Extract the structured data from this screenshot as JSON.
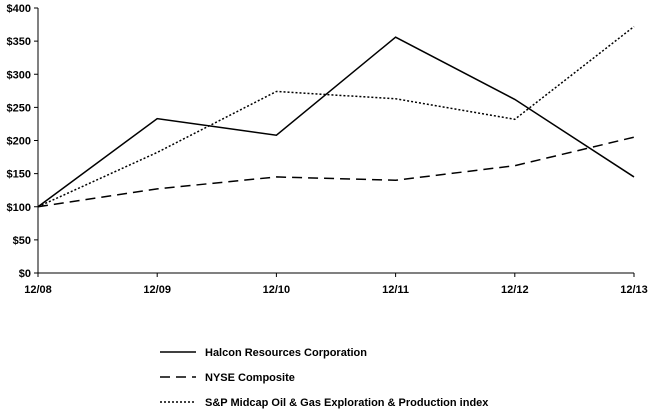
{
  "chart_data": {
    "type": "line",
    "title": "",
    "xlabel": "",
    "ylabel": "",
    "categories": [
      "12/08",
      "12/09",
      "12/10",
      "12/11",
      "12/12",
      "12/13"
    ],
    "ylim": [
      0,
      400
    ],
    "yticks": [
      0,
      50,
      100,
      150,
      200,
      250,
      300,
      350,
      400
    ],
    "ytick_labels": [
      "$0",
      "$50",
      "$100",
      "$150",
      "$200",
      "$250",
      "$300",
      "$350",
      "$400"
    ],
    "grid": false,
    "legend_position": "bottom",
    "series": [
      {
        "name": "Halcon Resources Corporation",
        "style": "solid",
        "values": [
          100,
          233,
          208,
          356,
          262,
          145
        ]
      },
      {
        "name": "NYSE Composite",
        "style": "dashed",
        "values": [
          100,
          127,
          145,
          140,
          162,
          205
        ]
      },
      {
        "name": "S&P Midcap Oil & Gas Exploration & Production index",
        "style": "dotted",
        "values": [
          100,
          182,
          274,
          263,
          232,
          372
        ]
      }
    ]
  }
}
